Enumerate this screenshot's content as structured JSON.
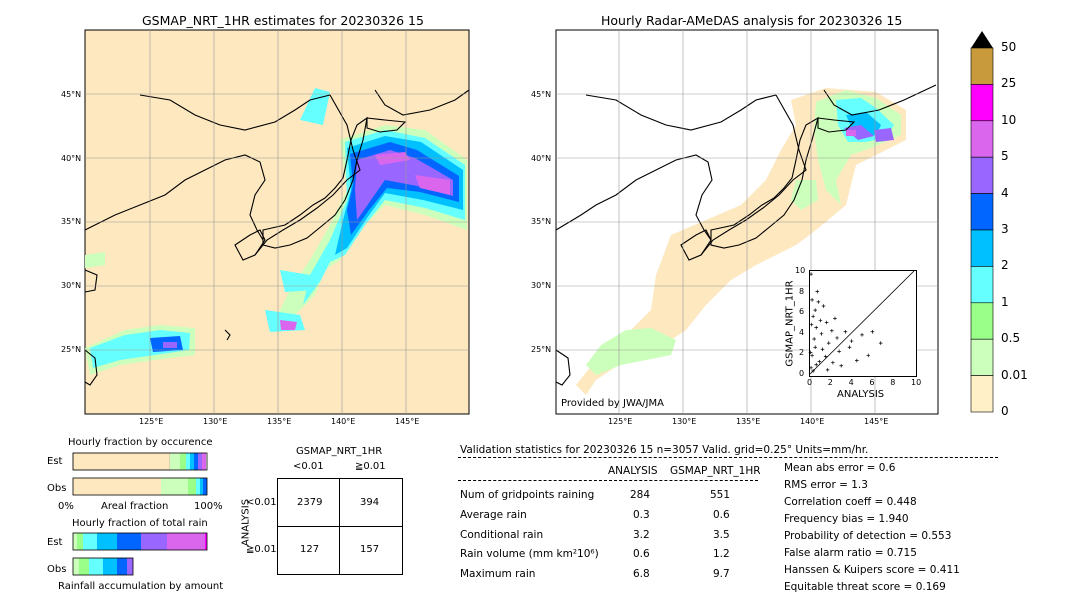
{
  "left_map": {
    "title": "GSMAP_NRT_1HR estimates for 20230326 15",
    "lat_labels": [
      "45°N",
      "40°N",
      "35°N",
      "30°N",
      "25°N"
    ],
    "lon_labels": [
      "125°E",
      "130°E",
      "135°E",
      "140°E",
      "145°E"
    ]
  },
  "right_map": {
    "title": "Hourly Radar-AMeDAS analysis for 20230326 15",
    "lat_labels": [
      "45°N",
      "40°N",
      "35°N",
      "30°N",
      "25°N"
    ],
    "lon_labels": [
      "125°E",
      "130°E",
      "135°E",
      "140°E",
      "145°E"
    ],
    "credit": "Provided by JWA/JMA"
  },
  "colorbar": {
    "ticks": [
      "50",
      "25",
      "10",
      "5",
      "4",
      "3",
      "2",
      "1",
      "0.5",
      "0.01",
      "0"
    ],
    "colors": [
      "#c89a3c",
      "#ff00ff",
      "#da66ee",
      "#9966ff",
      "#0066ff",
      "#00c0ff",
      "#66ffff",
      "#99ff88",
      "#ccffbb",
      "#fff0c8"
    ],
    "over_color": "#000000"
  },
  "chart_data": [
    {
      "type": "scatter",
      "xlabel": "ANALYSIS",
      "ylabel": "GSMAP_NRT_1HR",
      "xlim": [
        0,
        10
      ],
      "ylim": [
        0,
        10
      ],
      "xticks": [
        "0",
        "2",
        "4",
        "6",
        "8",
        "10"
      ],
      "yticks": [
        "0",
        "2",
        "4",
        "6",
        "8",
        "10"
      ],
      "points": [
        [
          0.1,
          9.7
        ],
        [
          0.5,
          6.2
        ],
        [
          0.3,
          5.6
        ],
        [
          0.8,
          7.0
        ],
        [
          1.0,
          5.2
        ],
        [
          1.3,
          6.6
        ],
        [
          1.6,
          5.0
        ],
        [
          0.6,
          4.5
        ],
        [
          2.1,
          4.2
        ],
        [
          3.4,
          4.1
        ],
        [
          2.6,
          3.5
        ],
        [
          4.0,
          3.2
        ],
        [
          5.0,
          3.8
        ],
        [
          6.0,
          4.1
        ],
        [
          6.8,
          3.0
        ],
        [
          1.8,
          3.0
        ],
        [
          1.2,
          2.4
        ],
        [
          2.8,
          2.2
        ],
        [
          0.4,
          3.4
        ],
        [
          0.2,
          1.8
        ],
        [
          0.9,
          1.2
        ],
        [
          0.1,
          0.6
        ],
        [
          0.3,
          0.3
        ],
        [
          1.5,
          1.7
        ],
        [
          3.0,
          0.8
        ],
        [
          4.5,
          1.3
        ],
        [
          0.7,
          8.0
        ],
        [
          0.2,
          7.2
        ],
        [
          1.1,
          3.9
        ],
        [
          2.4,
          5.4
        ],
        [
          0.5,
          2.6
        ],
        [
          0.15,
          4.8
        ],
        [
          5.6,
          1.8
        ],
        [
          3.8,
          2.6
        ],
        [
          2.2,
          1.1
        ],
        [
          1.7,
          0.4
        ],
        [
          0.05,
          2.1
        ],
        [
          0.6,
          0.9
        ]
      ]
    },
    {
      "type": "bar",
      "title": "Hourly fraction by occurence",
      "categories": [
        "Est",
        "Obs"
      ],
      "xlabel": "Areal fraction",
      "xticks": [
        "0%",
        "100%"
      ]
    },
    {
      "type": "bar",
      "title": "Hourly fraction of total rain",
      "categories": [
        "Est",
        "Obs"
      ],
      "xlabel": "Rainfall accumulation by amount"
    }
  ],
  "contingency": {
    "title": "GSMAP_NRT_1HR",
    "col_labels": [
      "<0.01",
      "≧0.01"
    ],
    "row_axis": "ANALYSIS",
    "row_labels": [
      "<0.01",
      "≧0.01"
    ],
    "cells": [
      [
        "2379",
        "394"
      ],
      [
        "127",
        "157"
      ]
    ]
  },
  "validation": {
    "header": "Validation statistics for 20230326 15  n=3057 Valid. grid=0.25° Units=mm/hr.",
    "col_analysis": "ANALYSIS",
    "col_gsmap": "GSMAP_NRT_1HR",
    "rows": [
      {
        "label": "Num of gridpoints raining",
        "analysis": "284",
        "gsmap": "551"
      },
      {
        "label": "Average rain",
        "analysis": "0.3",
        "gsmap": "0.6"
      },
      {
        "label": "Conditional rain",
        "analysis": "3.2",
        "gsmap": "3.5"
      },
      {
        "label": "Rain volume (mm km²10⁶)",
        "analysis": "0.6",
        "gsmap": "1.2"
      },
      {
        "label": "Maximum rain",
        "analysis": "6.8",
        "gsmap": "9.7"
      }
    ],
    "scores": [
      "Mean abs error =    0.6",
      "RMS error =    1.3",
      "Correlation coeff =  0.448",
      "Frequency bias =  1.940",
      "Probability of detection =  0.553",
      "False alarm ratio =  0.715",
      "Hanssen & Kuipers score =  0.411",
      "Equitable threat score =  0.169"
    ]
  }
}
